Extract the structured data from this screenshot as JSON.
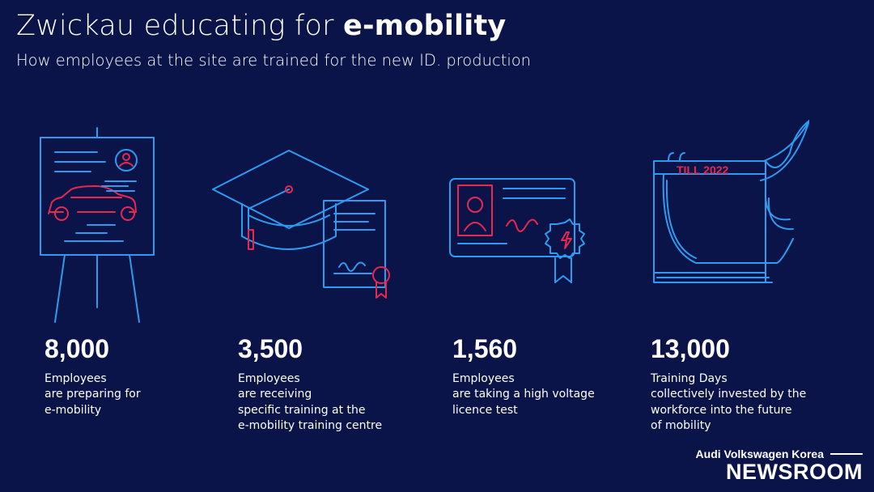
{
  "header": {
    "title_prefix": "Zwickau educating for ",
    "title_bold": "e-mobility",
    "subtitle": "How employees at the site are trained for the new ID. production"
  },
  "stats": [
    {
      "number": "8,000",
      "lines": [
        "Employees",
        "are preparing for",
        "e-mobility"
      ],
      "icon": "presentation-easel-car-icon"
    },
    {
      "number": "3,500",
      "lines": [
        "Employees",
        "are receiving",
        "specific training at the",
        "e-mobility training centre"
      ],
      "icon": "graduation-cap-certificate-icon"
    },
    {
      "number": "1,560",
      "lines": [
        "Employees",
        "are taking a high voltage",
        "licence test"
      ],
      "icon": "licence-card-badge-icon"
    },
    {
      "number": "13,000",
      "lines": [
        "Training Days",
        "collectively invested by the",
        "workforce into the future",
        "of mobility"
      ],
      "icon": "calendar-icon"
    }
  ],
  "calendar_label": "TILL 2022",
  "brand": {
    "top": "Audi Volkswagen Korea",
    "main": "NEWSROOM"
  },
  "colors": {
    "background": "#0a1449",
    "icon_blue": "#2f9bf0",
    "icon_red": "#e8284f",
    "text": "#ffffff"
  }
}
